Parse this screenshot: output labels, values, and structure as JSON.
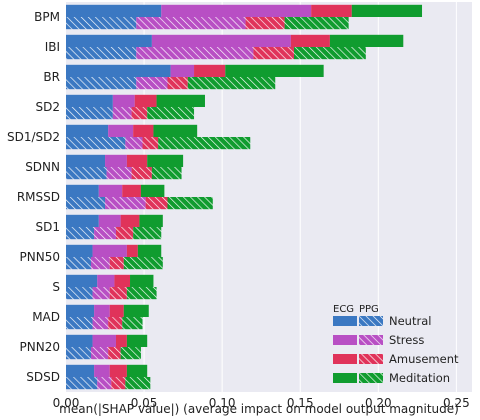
{
  "chart_data": {
    "type": "bar",
    "orientation": "horizontal",
    "stacked": true,
    "title": "",
    "xlabel": "mean(|SHAP value|) (average impact on model output magnitude)",
    "ylabel": "",
    "xlim": [
      0,
      0.26
    ],
    "x_ticks": [
      "0.00",
      "0.05",
      "0.10",
      "0.15",
      "0.20",
      "0.25"
    ],
    "x_tick_values": [
      0,
      0.05,
      0.1,
      0.15,
      0.2,
      0.25
    ],
    "grid": "vertical",
    "legend_position": "bottom-right",
    "categories": [
      "BPM",
      "IBI",
      "BR",
      "SD2",
      "SD1/SD2",
      "SDNN",
      "RMSSD",
      "SD1",
      "PNN50",
      "S",
      "MAD",
      "PNN20",
      "SDSD"
    ],
    "signals": [
      "ECG",
      "PPG"
    ],
    "series": [
      {
        "name": "Neutral",
        "color": "#3b78c2",
        "ecg": [
          0.061,
          0.055,
          0.067,
          0.03,
          0.027,
          0.025,
          0.021,
          0.021,
          0.017,
          0.02,
          0.018,
          0.017,
          0.018
        ],
        "ppg": [
          0.045,
          0.045,
          0.045,
          0.03,
          0.038,
          0.026,
          0.025,
          0.018,
          0.016,
          0.017,
          0.017,
          0.016,
          0.02
        ]
      },
      {
        "name": "Stress",
        "color": "#b84fc4",
        "ecg": [
          0.096,
          0.089,
          0.015,
          0.014,
          0.016,
          0.014,
          0.015,
          0.014,
          0.022,
          0.011,
          0.01,
          0.015,
          0.01
        ],
        "ppg": [
          0.07,
          0.075,
          0.02,
          0.012,
          0.011,
          0.016,
          0.026,
          0.014,
          0.012,
          0.011,
          0.01,
          0.011,
          0.009
        ]
      },
      {
        "name": "Amusement",
        "color": "#e0335a",
        "ecg": [
          0.026,
          0.025,
          0.02,
          0.014,
          0.013,
          0.013,
          0.012,
          0.012,
          0.007,
          0.01,
          0.009,
          0.007,
          0.011
        ],
        "ppg": [
          0.025,
          0.026,
          0.013,
          0.01,
          0.01,
          0.013,
          0.014,
          0.011,
          0.009,
          0.011,
          0.009,
          0.008,
          0.009
        ]
      },
      {
        "name": "Meditation",
        "color": "#109c2f",
        "ecg": [
          0.045,
          0.047,
          0.063,
          0.031,
          0.028,
          0.023,
          0.015,
          0.015,
          0.015,
          0.015,
          0.016,
          0.013,
          0.013
        ],
        "ppg": [
          0.041,
          0.046,
          0.056,
          0.03,
          0.059,
          0.019,
          0.029,
          0.018,
          0.025,
          0.019,
          0.013,
          0.013,
          0.016
        ]
      }
    ],
    "legend": {
      "headers": [
        "ECG",
        "PPG"
      ],
      "entries": [
        "Neutral",
        "Stress",
        "Amusement",
        "Meditation"
      ]
    },
    "colors": {
      "background": "#eaeaf2",
      "grid": "#ffffff",
      "hatch": "#ffffff"
    }
  }
}
